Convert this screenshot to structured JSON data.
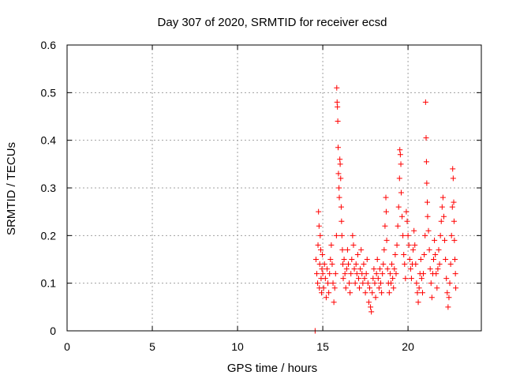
{
  "chart_data": {
    "type": "scatter",
    "title": "Day 307 of 2020, SRMTID for receiver ecsd",
    "xlabel": "GPS time / hours",
    "ylabel": "SRMTID / TECUs",
    "xlim": [
      0,
      24.3
    ],
    "ylim": [
      0,
      0.6
    ],
    "xticks": [
      0,
      5,
      10,
      15,
      20
    ],
    "yticks": [
      0,
      0.1,
      0.2,
      0.3,
      0.4,
      0.5,
      0.6
    ],
    "xtick_labels": [
      "0",
      "5",
      "10",
      "15",
      "20"
    ],
    "ytick_labels": [
      "0",
      "0.1",
      "0.2",
      "0.3",
      "0.4",
      "0.5",
      "0.6"
    ],
    "grid": true,
    "marker": "plus",
    "marker_color": "#ff0000",
    "series": [
      {
        "name": "SRMTID",
        "points": [
          [
            14.55,
            0.0
          ],
          [
            14.6,
            0.15
          ],
          [
            14.65,
            0.12
          ],
          [
            14.7,
            0.1
          ],
          [
            14.72,
            0.18
          ],
          [
            14.75,
            0.25
          ],
          [
            14.78,
            0.22
          ],
          [
            14.8,
            0.09
          ],
          [
            14.82,
            0.14
          ],
          [
            14.85,
            0.2
          ],
          [
            14.88,
            0.17
          ],
          [
            14.9,
            0.11
          ],
          [
            14.93,
            0.08
          ],
          [
            14.95,
            0.13
          ],
          [
            14.98,
            0.16
          ],
          [
            15.0,
            0.12
          ],
          [
            15.05,
            0.09
          ],
          [
            15.1,
            0.14
          ],
          [
            15.15,
            0.11
          ],
          [
            15.2,
            0.07
          ],
          [
            15.25,
            0.13
          ],
          [
            15.3,
            0.1
          ],
          [
            15.35,
            0.08
          ],
          [
            15.4,
            0.12
          ],
          [
            15.45,
            0.15
          ],
          [
            15.5,
            0.18
          ],
          [
            15.55,
            0.14
          ],
          [
            15.6,
            0.1
          ],
          [
            15.65,
            0.06
          ],
          [
            15.7,
            0.09
          ],
          [
            15.75,
            0.12
          ],
          [
            15.8,
            0.2
          ],
          [
            15.82,
            0.51
          ],
          [
            15.84,
            0.48
          ],
          [
            15.86,
            0.47
          ],
          [
            15.88,
            0.44
          ],
          [
            15.9,
            0.385
          ],
          [
            15.92,
            0.33
          ],
          [
            15.95,
            0.3
          ],
          [
            15.97,
            0.28
          ],
          [
            16.0,
            0.36
          ],
          [
            16.02,
            0.35
          ],
          [
            16.05,
            0.32
          ],
          [
            16.08,
            0.26
          ],
          [
            16.1,
            0.23
          ],
          [
            16.12,
            0.2
          ],
          [
            16.15,
            0.17
          ],
          [
            16.18,
            0.14
          ],
          [
            16.2,
            0.11
          ],
          [
            16.25,
            0.15
          ],
          [
            16.3,
            0.12
          ],
          [
            16.35,
            0.09
          ],
          [
            16.4,
            0.13
          ],
          [
            16.45,
            0.17
          ],
          [
            16.5,
            0.14
          ],
          [
            16.55,
            0.1
          ],
          [
            16.6,
            0.08
          ],
          [
            16.65,
            0.12
          ],
          [
            16.7,
            0.15
          ],
          [
            16.75,
            0.2
          ],
          [
            16.8,
            0.18
          ],
          [
            16.85,
            0.13
          ],
          [
            16.9,
            0.1
          ],
          [
            16.95,
            0.14
          ],
          [
            17.0,
            0.12
          ],
          [
            17.05,
            0.16
          ],
          [
            17.1,
            0.11
          ],
          [
            17.15,
            0.09
          ],
          [
            17.2,
            0.13
          ],
          [
            17.25,
            0.17
          ],
          [
            17.3,
            0.12
          ],
          [
            17.35,
            0.1
          ],
          [
            17.4,
            0.14
          ],
          [
            17.45,
            0.11
          ],
          [
            17.5,
            0.08
          ],
          [
            17.55,
            0.12
          ],
          [
            17.6,
            0.15
          ],
          [
            17.65,
            0.1
          ],
          [
            17.7,
            0.06
          ],
          [
            17.75,
            0.09
          ],
          [
            17.8,
            0.05
          ],
          [
            17.85,
            0.04
          ],
          [
            17.9,
            0.08
          ],
          [
            17.95,
            0.11
          ],
          [
            18.0,
            0.13
          ],
          [
            18.05,
            0.1
          ],
          [
            18.1,
            0.07
          ],
          [
            18.15,
            0.12
          ],
          [
            18.2,
            0.15
          ],
          [
            18.25,
            0.11
          ],
          [
            18.3,
            0.09
          ],
          [
            18.35,
            0.13
          ],
          [
            18.4,
            0.1
          ],
          [
            18.45,
            0.08
          ],
          [
            18.5,
            0.12
          ],
          [
            18.55,
            0.14
          ],
          [
            18.6,
            0.17
          ],
          [
            18.65,
            0.22
          ],
          [
            18.7,
            0.28
          ],
          [
            18.72,
            0.25
          ],
          [
            18.75,
            0.19
          ],
          [
            18.8,
            0.13
          ],
          [
            18.85,
            0.1
          ],
          [
            18.9,
            0.08
          ],
          [
            18.95,
            0.12
          ],
          [
            19.0,
            0.1
          ],
          [
            19.05,
            0.14
          ],
          [
            19.1,
            0.11
          ],
          [
            19.15,
            0.09
          ],
          [
            19.2,
            0.13
          ],
          [
            19.25,
            0.16
          ],
          [
            19.3,
            0.12
          ],
          [
            19.35,
            0.18
          ],
          [
            19.4,
            0.22
          ],
          [
            19.45,
            0.26
          ],
          [
            19.5,
            0.32
          ],
          [
            19.52,
            0.38
          ],
          [
            19.55,
            0.37
          ],
          [
            19.58,
            0.35
          ],
          [
            19.6,
            0.29
          ],
          [
            19.65,
            0.24
          ],
          [
            19.7,
            0.2
          ],
          [
            19.75,
            0.16
          ],
          [
            19.8,
            0.14
          ],
          [
            19.85,
            0.11
          ],
          [
            19.9,
            0.25
          ],
          [
            19.95,
            0.23
          ],
          [
            20.0,
            0.2
          ],
          [
            20.05,
            0.18
          ],
          [
            20.1,
            0.15
          ],
          [
            20.15,
            0.13
          ],
          [
            20.2,
            0.11
          ],
          [
            20.25,
            0.14
          ],
          [
            20.3,
            0.17
          ],
          [
            20.35,
            0.21
          ],
          [
            20.4,
            0.18
          ],
          [
            20.45,
            0.14
          ],
          [
            20.5,
            0.1
          ],
          [
            20.55,
            0.08
          ],
          [
            20.6,
            0.06
          ],
          [
            20.65,
            0.09
          ],
          [
            20.7,
            0.12
          ],
          [
            20.75,
            0.15
          ],
          [
            20.8,
            0.11
          ],
          [
            20.85,
            0.08
          ],
          [
            20.9,
            0.12
          ],
          [
            20.95,
            0.16
          ],
          [
            21.0,
            0.2
          ],
          [
            21.03,
            0.48
          ],
          [
            21.06,
            0.405
          ],
          [
            21.08,
            0.355
          ],
          [
            21.1,
            0.31
          ],
          [
            21.13,
            0.27
          ],
          [
            21.15,
            0.24
          ],
          [
            21.2,
            0.21
          ],
          [
            21.25,
            0.17
          ],
          [
            21.3,
            0.13
          ],
          [
            21.35,
            0.1
          ],
          [
            21.4,
            0.07
          ],
          [
            21.45,
            0.12
          ],
          [
            21.5,
            0.15
          ],
          [
            21.55,
            0.19
          ],
          [
            21.6,
            0.16
          ],
          [
            21.65,
            0.12
          ],
          [
            21.7,
            0.09
          ],
          [
            21.75,
            0.13
          ],
          [
            21.8,
            0.17
          ],
          [
            21.85,
            0.14
          ],
          [
            21.9,
            0.2
          ],
          [
            21.95,
            0.23
          ],
          [
            22.0,
            0.26
          ],
          [
            22.05,
            0.28
          ],
          [
            22.1,
            0.24
          ],
          [
            22.15,
            0.19
          ],
          [
            22.2,
            0.15
          ],
          [
            22.25,
            0.11
          ],
          [
            22.3,
            0.08
          ],
          [
            22.35,
            0.05
          ],
          [
            22.4,
            0.07
          ],
          [
            22.45,
            0.1
          ],
          [
            22.5,
            0.14
          ],
          [
            22.55,
            0.2
          ],
          [
            22.6,
            0.26
          ],
          [
            22.62,
            0.34
          ],
          [
            22.65,
            0.32
          ],
          [
            22.68,
            0.27
          ],
          [
            22.7,
            0.23
          ],
          [
            22.72,
            0.19
          ],
          [
            22.75,
            0.15
          ],
          [
            22.78,
            0.12
          ],
          [
            22.8,
            0.09
          ]
        ]
      }
    ]
  }
}
